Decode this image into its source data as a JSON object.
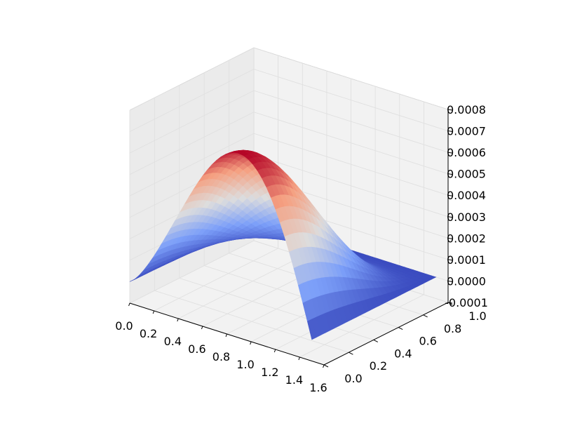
{
  "chart_data": {
    "type": "surface",
    "title": "",
    "xlabel": "",
    "ylabel": "",
    "zlabel": "",
    "colormap": "coolwarm",
    "colormap_low": "#3b4cc0",
    "colormap_mid": "#dddddd",
    "colormap_high": "#b40426",
    "grid": true,
    "xlim": [
      0.0,
      1.6
    ],
    "ylim": [
      0.0,
      1.0
    ],
    "zlim": [
      -0.0001,
      0.0008
    ],
    "x_domain": [
      0.0,
      1.5
    ],
    "y_domain": [
      0.0,
      1.0
    ],
    "z_peak": 0.00076,
    "z_peak_at": {
      "x": 0.55,
      "y": 0.0
    },
    "x_ticks": [
      "0.0",
      "0.2",
      "0.4",
      "0.6",
      "0.8",
      "1.0",
      "1.2",
      "1.4",
      "1.6"
    ],
    "y_ticks": [
      "0.0",
      "0.2",
      "0.4",
      "0.6",
      "0.8",
      "1.0"
    ],
    "z_ticks": [
      "-0.0001",
      "0.0000",
      "0.0001",
      "0.0002",
      "0.0003",
      "0.0004",
      "0.0005",
      "0.0006",
      "0.0007",
      "0.0008"
    ]
  }
}
